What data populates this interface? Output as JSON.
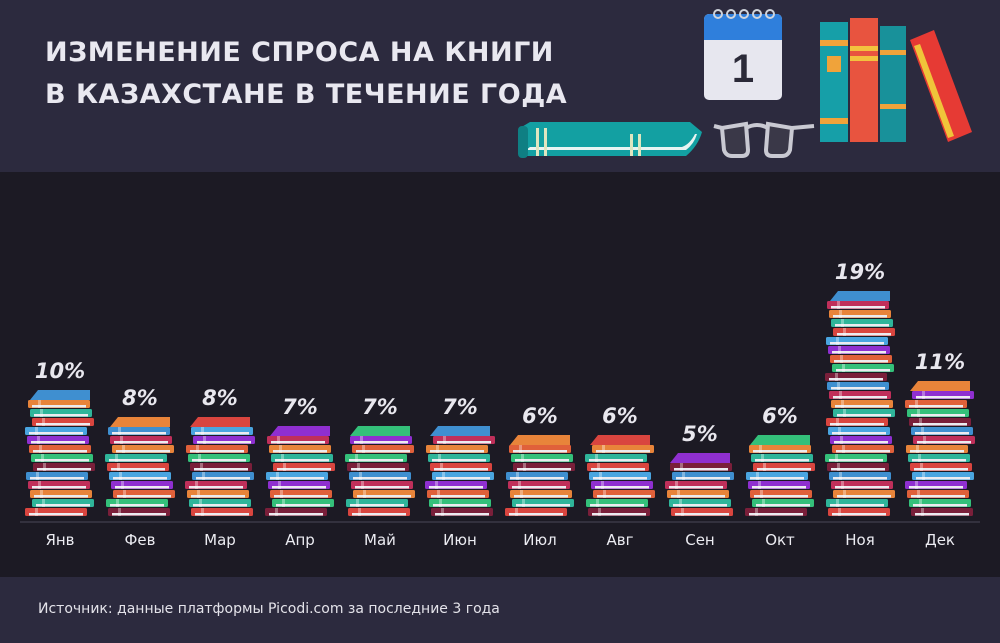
{
  "header": {
    "title_line1": "ИЗМЕНЕНИЕ СПРОСА НА КНИГИ",
    "title_line2": "В КАЗАХСТАНЕ В ТЕЧЕНИЕ ГОДА",
    "calendar_day": "1",
    "background": "#2c2a3e"
  },
  "footer": {
    "source": "Источник: данные платформы Picodi.com за последние 3 года"
  },
  "colors": {
    "background": "#1c1a24",
    "panel": "#2c2a3e",
    "text": "#e9e8f0",
    "book_palette": [
      "#d9453f",
      "#e0603a",
      "#3f8fd0",
      "#2fb59a",
      "#8f2fd0",
      "#7a1f3a",
      "#e8843a",
      "#4aa5e0",
      "#34c07a",
      "#c02f5a"
    ]
  },
  "chart_data": {
    "type": "bar",
    "title": "ИЗМЕНЕНИЕ СПРОСА НА КНИГИ В КАЗАХСТАНЕ В ТЕЧЕНИЕ ГОДА",
    "categories": [
      "Янв",
      "Фев",
      "Мар",
      "Апр",
      "Май",
      "Июн",
      "Июл",
      "Авг",
      "Сен",
      "Окт",
      "Ноя",
      "Дек"
    ],
    "values": [
      10,
      8,
      8,
      7,
      7,
      7,
      6,
      6,
      5,
      6,
      19,
      11
    ],
    "value_labels": [
      "10%",
      "8%",
      "8%",
      "7%",
      "7%",
      "7%",
      "6%",
      "6%",
      "5%",
      "6%",
      "19%",
      "11%"
    ],
    "unit": "%",
    "xlabel": "",
    "ylabel": "",
    "ylim": [
      0,
      20
    ],
    "grid": false,
    "legend": "none",
    "mark_style": "stacked books"
  }
}
